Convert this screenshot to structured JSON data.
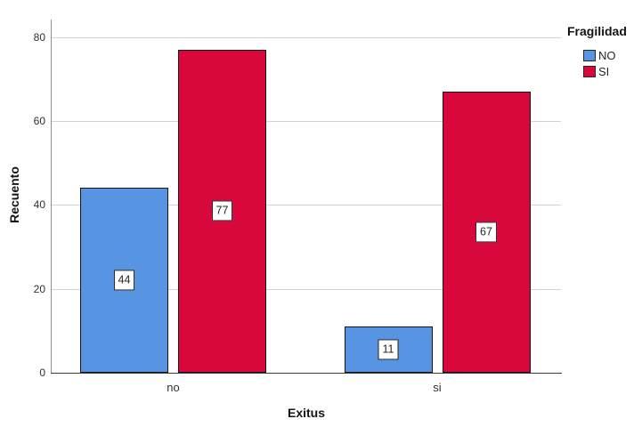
{
  "chart_data": {
    "type": "bar",
    "categories": [
      "no",
      "si"
    ],
    "series": [
      {
        "name": "NO",
        "color": "#5794E2",
        "values": [
          44,
          11
        ]
      },
      {
        "name": "SI",
        "color": "#D8083C",
        "values": [
          77,
          67
        ]
      }
    ],
    "xlabel": "Exitus",
    "ylabel": "Recuento",
    "ylim": [
      0,
      80
    ],
    "yticks": [
      0,
      20,
      40,
      60,
      80
    ],
    "ytick_labels": [
      "0",
      "20",
      "40",
      "60",
      "80"
    ],
    "grid": true,
    "bar_value_labels": true,
    "legend": {
      "title": "Fragilidad",
      "position": "top-right",
      "items": [
        {
          "label": "NO",
          "color": "#5794E2"
        },
        {
          "label": "SI",
          "color": "#D8083C"
        }
      ]
    }
  }
}
